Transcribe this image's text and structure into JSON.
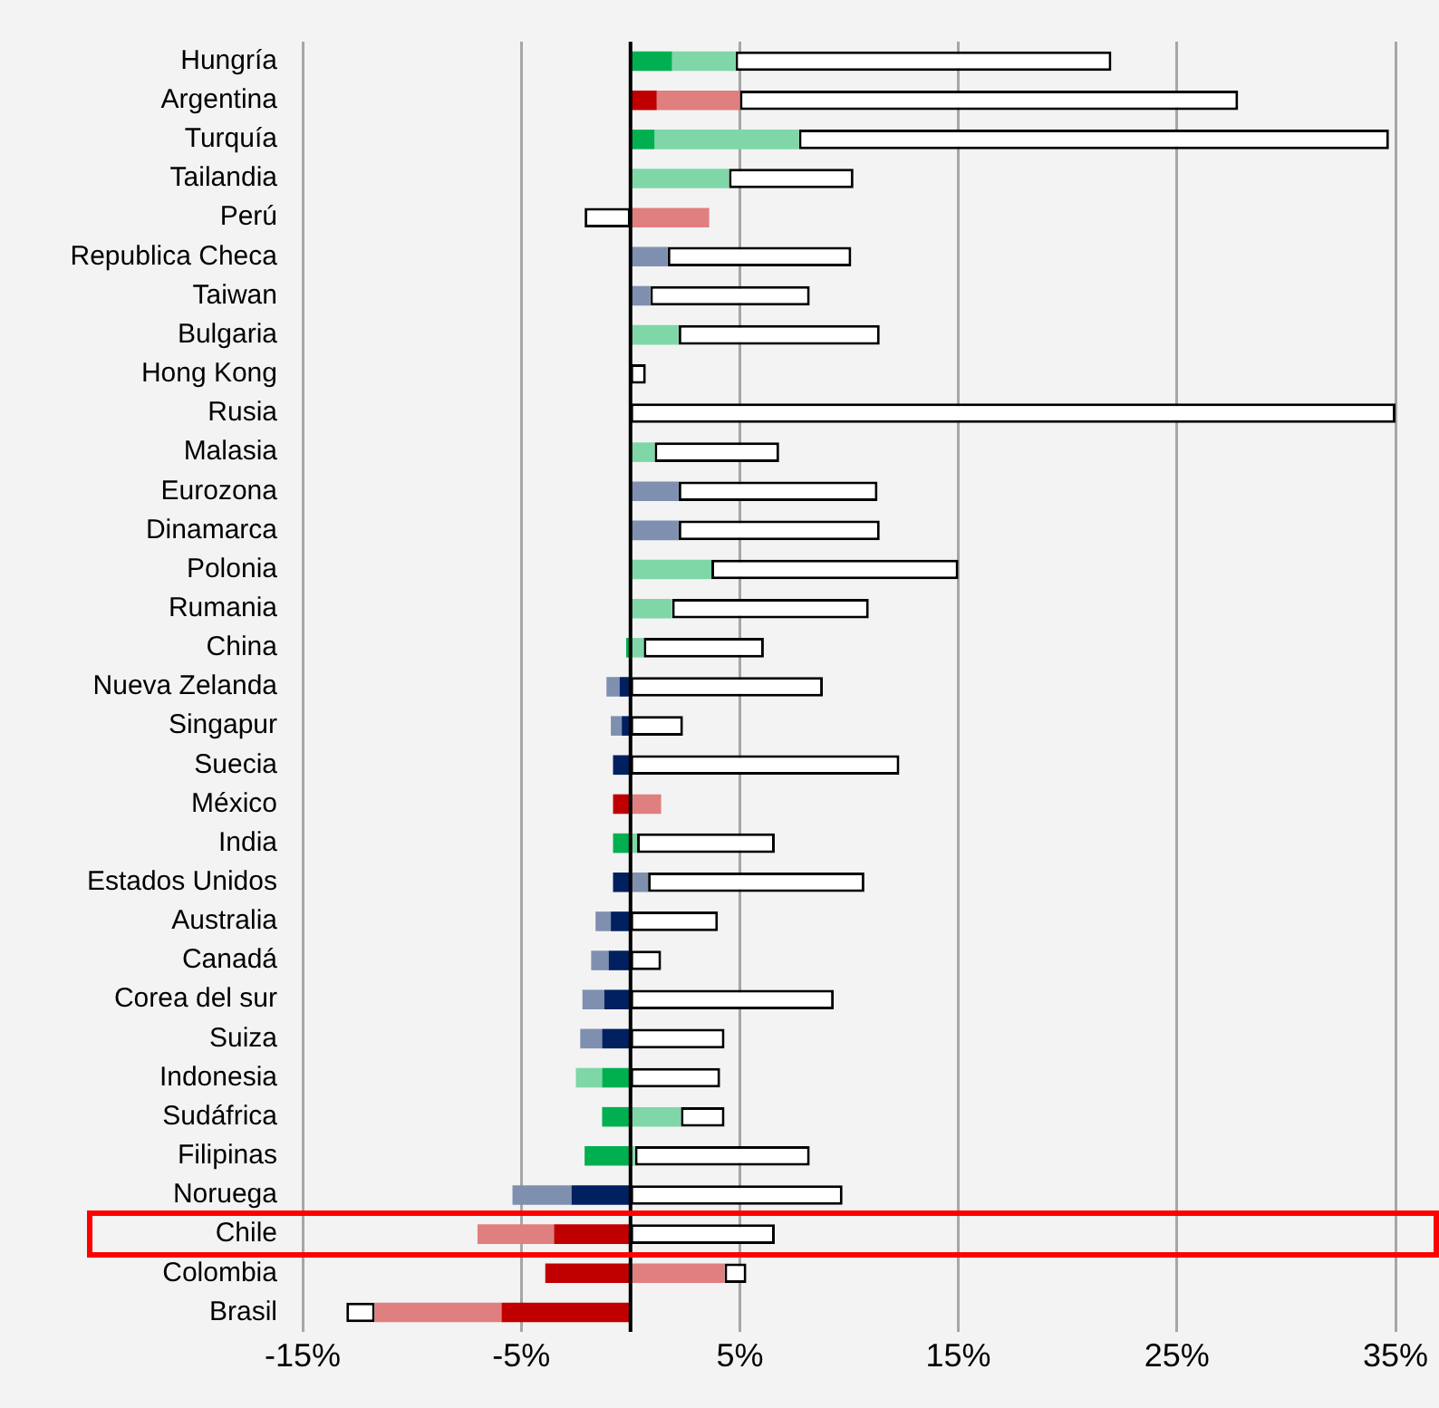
{
  "chart_data": {
    "type": "bar",
    "orientation": "horizontal",
    "stacked": true,
    "categories": [
      "Hungría",
      "Argentina",
      "Turquía",
      "Tailandia",
      "Perú",
      "Republica Checa",
      "Taiwan",
      "Bulgaria",
      "Hong Kong",
      "Rusia",
      "Malasia",
      "Eurozona",
      "Dinamarca",
      "Polonia",
      "Rumania",
      "China",
      "Nueva Zelanda",
      "Singapur",
      "Suecia",
      "México",
      "India",
      "Estados Unidos",
      "Australia",
      "Canadá",
      "Corea del sur",
      "Suiza",
      "Indonesia",
      "Sudáfrica",
      "Filipinas",
      "Noruega",
      "Chile",
      "Colombia",
      "Brasil"
    ],
    "series": [
      {
        "colors": [
          "#00b050",
          "#c00000",
          "#00b050",
          "#00b050",
          "#c00000",
          "#002060",
          "#002060",
          "#00b050",
          null,
          null,
          "#00b050",
          "#002060",
          "#002060",
          "#00b050",
          "#00b050",
          "#00b050",
          "#002060",
          "#002060",
          "#002060",
          "#c00000",
          "#00b050",
          "#002060",
          "#002060",
          "#002060",
          "#002060",
          "#002060",
          "#00b050",
          "#00b050",
          "#00b050",
          "#002060",
          "#c00000",
          "#c00000",
          "#c00000"
        ],
        "values": [
          1.9,
          1.2,
          1.1,
          0,
          0,
          0,
          0,
          0,
          null,
          null,
          0,
          0,
          0,
          0,
          0,
          -0.2,
          -0.5,
          -0.4,
          -0.8,
          -0.8,
          -0.8,
          -0.8,
          -0.9,
          -1.0,
          -1.2,
          -1.3,
          -1.3,
          -1.3,
          -2.1,
          -2.7,
          -3.5,
          -3.9,
          -5.9
        ]
      },
      {
        "colors": [
          "#7fd7a7",
          "#e07f7f",
          "#7fd7a7",
          "#7fd7a7",
          "#e07f7f",
          "#7f8faf",
          "#7f8faf",
          "#7fd7a7",
          null,
          null,
          "#7fd7a7",
          "#7f8faf",
          "#7f8faf",
          "#7fd7a7",
          "#7fd7a7",
          "#7fd7a7",
          "#7f8faf",
          "#7f8faf",
          null,
          "#e07f7f",
          "#7fd7a7",
          "#7f8faf",
          "#7f8faf",
          "#7f8faf",
          "#7f8faf",
          "#7f8faf",
          "#7fd7a7",
          "#7fd7a7",
          "#7fd7a7",
          "#7f8faf",
          "#e07f7f",
          "#e07f7f",
          "#e07f7f"
        ],
        "values": [
          2.9,
          3.8,
          6.6,
          4.5,
          3.6,
          1.7,
          0.9,
          2.2,
          null,
          null,
          1.1,
          2.2,
          2.2,
          3.7,
          1.9,
          0.6,
          -0.6,
          -0.5,
          null,
          1.4,
          0.3,
          0.8,
          -0.7,
          -0.8,
          -1.0,
          -1.0,
          -1.2,
          2.3,
          0.2,
          -2.7,
          -3.5,
          4.3,
          -5.8
        ]
      },
      {
        "color": "#ffffff",
        "values": [
          17.2,
          22.8,
          27.0,
          5.7,
          -2.1,
          8.4,
          7.3,
          9.2,
          0.7,
          35,
          5.7,
          9.1,
          9.2,
          11.3,
          9.0,
          5.5,
          8.8,
          2.4,
          12.3,
          0,
          6.3,
          9.9,
          4.0,
          1.4,
          9.3,
          4.3,
          4.1,
          2.0,
          8.0,
          9.7,
          6.6,
          1.0,
          -1.3
        ]
      }
    ],
    "xlim": [
      -15,
      35
    ],
    "xticks": [
      {
        "value": -15,
        "label": "-15%"
      },
      {
        "value": -5,
        "label": "-5%"
      },
      {
        "value": 5,
        "label": "5%"
      },
      {
        "value": 15,
        "label": "15%"
      },
      {
        "value": 25,
        "label": "25%"
      },
      {
        "value": 35,
        "label": "35%"
      }
    ],
    "ref_lines": [
      {
        "axis": "x",
        "value": 0,
        "color": "#000000"
      }
    ],
    "grid": "x",
    "legend": false
  }
}
